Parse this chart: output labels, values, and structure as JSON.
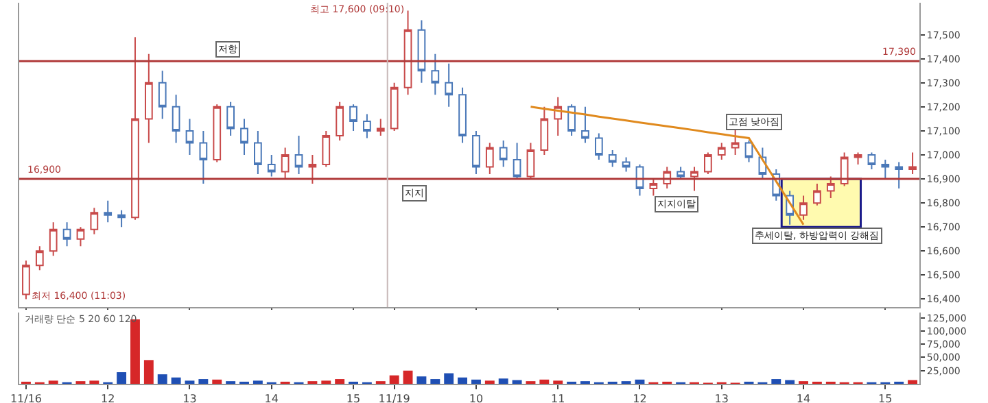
{
  "chart_data": [
    {
      "type": "candlestick",
      "categories": [
        "11/16",
        null,
        null,
        null,
        null,
        null,
        "12",
        null,
        null,
        null,
        null,
        null,
        "13",
        null,
        null,
        null,
        null,
        null,
        "14",
        null,
        null,
        null,
        null,
        null,
        "15",
        null,
        null,
        "11/19",
        null,
        null,
        null,
        null,
        null,
        "10",
        null,
        null,
        null,
        null,
        null,
        "11",
        null,
        null,
        null,
        null,
        null,
        "12",
        null,
        null,
        null,
        null,
        null,
        "13",
        null,
        null,
        null,
        null,
        null,
        "14",
        null,
        null,
        null,
        null,
        null,
        "15",
        null,
        null
      ],
      "ohlc": [
        [
          16420,
          16560,
          16400,
          16540
        ],
        [
          16540,
          16620,
          16520,
          16600
        ],
        [
          16600,
          16720,
          16580,
          16690
        ],
        [
          16690,
          16720,
          16620,
          16650
        ],
        [
          16650,
          16700,
          16620,
          16690
        ],
        [
          16690,
          16780,
          16670,
          16760
        ],
        [
          16760,
          16810,
          16720,
          16750
        ],
        [
          16750,
          16770,
          16700,
          16740
        ],
        [
          16740,
          17490,
          16730,
          17150
        ],
        [
          17150,
          17420,
          17050,
          17300
        ],
        [
          17300,
          17350,
          17150,
          17200
        ],
        [
          17200,
          17250,
          17050,
          17100
        ],
        [
          17100,
          17150,
          17000,
          17050
        ],
        [
          17050,
          17100,
          16880,
          16980
        ],
        [
          16980,
          17210,
          16970,
          17200
        ],
        [
          17200,
          17220,
          17080,
          17110
        ],
        [
          17110,
          17150,
          17000,
          17050
        ],
        [
          17050,
          17100,
          16920,
          16960
        ],
        [
          16960,
          17000,
          16910,
          16930
        ],
        [
          16930,
          17030,
          16900,
          17000
        ],
        [
          17000,
          17080,
          16920,
          16950
        ],
        [
          16950,
          17000,
          16880,
          16960
        ],
        [
          16960,
          17100,
          16950,
          17080
        ],
        [
          17080,
          17220,
          17060,
          17200
        ],
        [
          17200,
          17210,
          17100,
          17140
        ],
        [
          17140,
          17170,
          17070,
          17100
        ],
        [
          17100,
          17150,
          17080,
          17110
        ],
        [
          17110,
          17300,
          17100,
          17280
        ],
        [
          17280,
          17600,
          17250,
          17520
        ],
        [
          17520,
          17560,
          17300,
          17350
        ],
        [
          17350,
          17420,
          17250,
          17300
        ],
        [
          17300,
          17380,
          17200,
          17250
        ],
        [
          17250,
          17280,
          17050,
          17080
        ],
        [
          17080,
          17100,
          16920,
          16950
        ],
        [
          16950,
          17050,
          16920,
          17030
        ],
        [
          17030,
          17060,
          16950,
          16980
        ],
        [
          16980,
          17050,
          16900,
          16910
        ],
        [
          16910,
          17050,
          16900,
          17020
        ],
        [
          17020,
          17200,
          17000,
          17150
        ],
        [
          17150,
          17240,
          17080,
          17200
        ],
        [
          17200,
          17210,
          17080,
          17100
        ],
        [
          17100,
          17200,
          17050,
          17070
        ],
        [
          17070,
          17090,
          16980,
          17000
        ],
        [
          17000,
          17020,
          16950,
          16970
        ],
        [
          16970,
          16990,
          16930,
          16950
        ],
        [
          16950,
          16960,
          16830,
          16860
        ],
        [
          16860,
          16900,
          16830,
          16880
        ],
        [
          16880,
          16950,
          16860,
          16930
        ],
        [
          16930,
          16950,
          16900,
          16910
        ],
        [
          16910,
          16950,
          16850,
          16930
        ],
        [
          16930,
          17010,
          16920,
          17000
        ],
        [
          17000,
          17050,
          16980,
          17030
        ],
        [
          17030,
          17110,
          17000,
          17050
        ],
        [
          17050,
          17060,
          16970,
          16990
        ],
        [
          16990,
          17030,
          16900,
          16920
        ],
        [
          16920,
          16940,
          16810,
          16830
        ],
        [
          16830,
          16850,
          16710,
          16750
        ],
        [
          16750,
          16830,
          16730,
          16800
        ],
        [
          16800,
          16880,
          16790,
          16850
        ],
        [
          16850,
          16910,
          16820,
          16880
        ],
        [
          16880,
          17010,
          16870,
          16990
        ],
        [
          16990,
          17010,
          16960,
          17000
        ],
        [
          17000,
          17010,
          16940,
          16960
        ],
        [
          16960,
          16980,
          16900,
          16950
        ],
        [
          16950,
          16970,
          16860,
          16940
        ],
        [
          16940,
          17010,
          16920,
          16950
        ]
      ],
      "series": [
        {
          "type": "line",
          "color": "#e08a1e",
          "values": [
            null,
            null,
            null,
            null,
            null,
            null,
            null,
            null,
            null,
            null,
            null,
            null,
            null,
            null,
            null,
            null,
            null,
            null,
            null,
            null,
            null,
            null,
            null,
            null,
            null,
            null,
            null,
            null,
            null,
            null,
            null,
            null,
            null,
            null,
            null,
            null,
            null,
            17200,
            17192,
            17184,
            17176,
            17168,
            17159,
            17151,
            17143,
            17135,
            17127,
            17119,
            17111,
            17103,
            17094,
            17086,
            17078,
            17070,
            16980,
            16890,
            16800,
            16710,
            null,
            null,
            null,
            null,
            null,
            null,
            null,
            null
          ]
        }
      ],
      "ylim": [
        16367,
        17633
      ],
      "yticks": [
        {
          "value": 16400,
          "label": "16,400"
        },
        {
          "value": 16500,
          "label": "16,500"
        },
        {
          "value": 16600,
          "label": "16,600"
        },
        {
          "value": 16700,
          "label": "16,700"
        },
        {
          "value": 16800,
          "label": "16,800"
        },
        {
          "value": 16900,
          "label": "16,900"
        },
        {
          "value": 17000,
          "label": "17,000"
        },
        {
          "value": 17100,
          "label": "17,100"
        },
        {
          "value": 17200,
          "label": "17,200"
        },
        {
          "value": 17300,
          "label": "17,300"
        },
        {
          "value": 17400,
          "label": "17,400"
        },
        {
          "value": 17500,
          "label": "17,500"
        }
      ],
      "tick_labels": "y",
      "ref_lines": [
        {
          "axis": "y",
          "value": 17390,
          "label": "17,390",
          "color": "#b03a3a"
        },
        {
          "axis": "y",
          "value": 16900,
          "label": "16,900",
          "color": "#b03a3a"
        },
        {
          "axis": "x",
          "value": "11/19",
          "label": null,
          "color": "#c8b8b8"
        }
      ],
      "annotations": [
        "최고 17,600 (09:10)",
        "최저 16,400 (11:03)",
        "저항",
        "지지",
        "지지이탈",
        "고점 낮아짐",
        "추세이탈, 하방압력이 강해짐"
      ]
    },
    {
      "type": "bar",
      "categories": [
        "11/16",
        null,
        null,
        null,
        null,
        null,
        "12",
        null,
        null,
        null,
        null,
        null,
        "13",
        null,
        null,
        null,
        null,
        null,
        "14",
        null,
        null,
        null,
        null,
        null,
        "15",
        null,
        null,
        "11/19",
        null,
        null,
        null,
        null,
        null,
        "10",
        null,
        null,
        null,
        null,
        null,
        "11",
        null,
        null,
        null,
        null,
        null,
        "12",
        null,
        null,
        null,
        null,
        null,
        "13",
        null,
        null,
        null,
        null,
        null,
        "14",
        null,
        null,
        null,
        null,
        null,
        "15",
        null,
        null
      ],
      "values": [
        4000,
        3000,
        6000,
        3000,
        5000,
        6000,
        3000,
        22000,
        122000,
        45000,
        18000,
        12000,
        6000,
        9000,
        8000,
        5000,
        4000,
        6000,
        3000,
        4000,
        3000,
        5000,
        6000,
        9000,
        4000,
        3000,
        5000,
        16000,
        25000,
        14000,
        9000,
        20000,
        12000,
        8000,
        6000,
        10000,
        7000,
        5000,
        8000,
        6000,
        4000,
        5000,
        3000,
        4000,
        5000,
        8000,
        3000,
        4000,
        3000,
        3000,
        2000,
        3000,
        2000,
        4000,
        3000,
        9000,
        7000,
        5000,
        4000,
        4000,
        3000,
        3000,
        3000,
        3000,
        4000,
        7000
      ],
      "colors": [
        "#d62728",
        "#d62728",
        "#d62728",
        "#1f4fb4",
        "#d62728",
        "#d62728",
        "#1f4fb4",
        "#1f4fb4",
        "#d62728",
        "#d62728",
        "#1f4fb4",
        "#1f4fb4",
        "#1f4fb4",
        "#1f4fb4",
        "#d62728",
        "#1f4fb4",
        "#1f4fb4",
        "#1f4fb4",
        "#1f4fb4",
        "#d62728",
        "#1f4fb4",
        "#d62728",
        "#d62728",
        "#d62728",
        "#1f4fb4",
        "#1f4fb4",
        "#d62728",
        "#d62728",
        "#d62728",
        "#1f4fb4",
        "#1f4fb4",
        "#1f4fb4",
        "#1f4fb4",
        "#1f4fb4",
        "#d62728",
        "#1f4fb4",
        "#1f4fb4",
        "#d62728",
        "#d62728",
        "#d62728",
        "#1f4fb4",
        "#1f4fb4",
        "#1f4fb4",
        "#1f4fb4",
        "#1f4fb4",
        "#1f4fb4",
        "#d62728",
        "#d62728",
        "#1f4fb4",
        "#d62728",
        "#d62728",
        "#d62728",
        "#d62728",
        "#1f4fb4",
        "#1f4fb4",
        "#1f4fb4",
        "#1f4fb4",
        "#d62728",
        "#d62728",
        "#d62728",
        "#d62728",
        "#d62728",
        "#1f4fb4",
        "#1f4fb4",
        "#1f4fb4",
        "#d62728"
      ],
      "ylim": [
        0,
        135000
      ],
      "yticks": [
        {
          "value": 25000,
          "label": "25,000"
        },
        {
          "value": 50000,
          "label": "50,000"
        },
        {
          "value": 75000,
          "label": "75,000"
        },
        {
          "value": 100000,
          "label": "100,000"
        },
        {
          "value": 125000,
          "label": "125,000"
        }
      ],
      "annotations": [
        "거래량 단순 5 20 60 120"
      ]
    }
  ]
}
